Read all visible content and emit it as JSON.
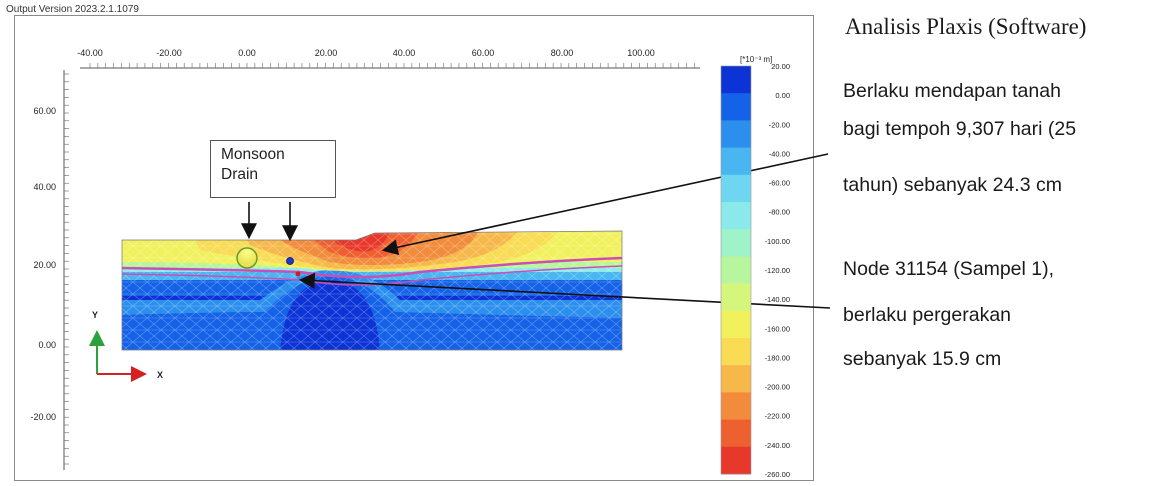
{
  "window": {
    "output_version": "Output Version 2023.2.1.1079"
  },
  "plot": {
    "x_ticks": [
      "-40.00",
      "-20.00",
      "0.00",
      "20.00",
      "40.00",
      "60.00",
      "80.00",
      "100.00"
    ],
    "y_ticks": [
      "60.00",
      "40.00",
      "20.00",
      "0.00",
      "-20.00"
    ],
    "axis_x_label": "X",
    "axis_y_label": "Y",
    "callout_box": "Monsoon Drain"
  },
  "legend": {
    "unit_label": "[*10⁻³ m]",
    "values": [
      "20.00",
      "0.00",
      "-20.00",
      "-40.00",
      "-60.00",
      "-80.00",
      "-100.00",
      "-120.00",
      "-140.00",
      "-160.00",
      "-180.00",
      "-200.00",
      "-220.00",
      "-240.00",
      "-260.00"
    ],
    "colors": [
      "#0b33d6",
      "#1462e8",
      "#2c8fee",
      "#49b5f1",
      "#6fd6f1",
      "#8be9ea",
      "#9ef3c9",
      "#b7f69e",
      "#d6f57b",
      "#f1f15e",
      "#f8dc54",
      "#f6b84a",
      "#f28c3c",
      "#ef6031",
      "#e8382b"
    ]
  },
  "annotations": {
    "title": "Analisis Plaxis (Software)",
    "line1": "Berlaku mendapan tanah",
    "line2": "bagi tempoh 9,307 hari (25",
    "line3": "tahun) sebanyak 24.3 cm",
    "line4": "Node 31154 (Sampel 1),",
    "line5": "berlaku pergerakan",
    "line6": "sebanyak 15.9 cm"
  }
}
